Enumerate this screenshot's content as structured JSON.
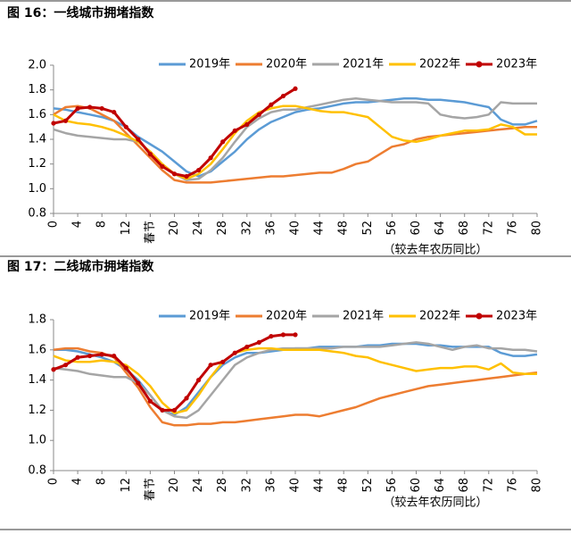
{
  "chart_data": [
    {
      "type": "line",
      "title": "图 16：一线城市拥堵指数",
      "annotation": "（较去年农历同比）",
      "x": [
        0,
        2,
        4,
        6,
        8,
        10,
        12,
        14,
        16,
        18,
        20,
        22,
        24,
        26,
        28,
        30,
        32,
        34,
        36,
        38,
        40,
        42,
        44,
        46,
        48,
        50,
        52,
        54,
        56,
        58,
        60,
        62,
        64,
        66,
        68,
        70,
        72,
        74,
        76,
        78,
        80
      ],
      "xlim": [
        0,
        80
      ],
      "xticks": [
        0,
        4,
        8,
        12,
        {
          "value": 16,
          "label": "春节"
        },
        20,
        24,
        28,
        32,
        36,
        40,
        44,
        48,
        52,
        56,
        60,
        64,
        68,
        72,
        76,
        80
      ],
      "ylim": [
        0.8,
        2.0
      ],
      "yticks": [
        0.8,
        {
          "value": 1,
          "label": "1.0"
        },
        1.2,
        1.4,
        1.6,
        1.8,
        {
          "value": 2,
          "label": "2.0"
        }
      ],
      "series": [
        {
          "name": "2019年",
          "color": "#5b9bd5",
          "values": [
            1.65,
            1.64,
            1.62,
            1.6,
            1.58,
            1.55,
            1.5,
            1.42,
            1.36,
            1.3,
            1.22,
            1.14,
            1.1,
            1.14,
            1.22,
            1.3,
            1.4,
            1.48,
            1.54,
            1.58,
            1.62,
            1.64,
            1.65,
            1.67,
            1.69,
            1.7,
            1.7,
            1.71,
            1.72,
            1.73,
            1.73,
            1.72,
            1.72,
            1.71,
            1.7,
            1.68,
            1.66,
            1.56,
            1.52,
            1.52,
            1.55
          ]
        },
        {
          "name": "2020年",
          "color": "#ed7d31",
          "values": [
            1.6,
            1.66,
            1.67,
            1.65,
            1.6,
            1.55,
            1.45,
            1.35,
            1.25,
            1.15,
            1.07,
            1.05,
            1.05,
            1.05,
            1.06,
            1.07,
            1.08,
            1.09,
            1.1,
            1.1,
            1.11,
            1.12,
            1.13,
            1.13,
            1.16,
            1.2,
            1.22,
            1.28,
            1.34,
            1.36,
            1.4,
            1.42,
            1.43,
            1.44,
            1.45,
            1.46,
            1.47,
            1.48,
            1.49,
            1.5,
            1.5
          ]
        },
        {
          "name": "2021年",
          "color": "#a5a5a5",
          "values": [
            1.48,
            1.45,
            1.43,
            1.42,
            1.41,
            1.4,
            1.4,
            1.38,
            1.3,
            1.2,
            1.12,
            1.07,
            1.08,
            1.15,
            1.25,
            1.38,
            1.5,
            1.57,
            1.62,
            1.64,
            1.64,
            1.66,
            1.68,
            1.7,
            1.72,
            1.73,
            1.72,
            1.71,
            1.7,
            1.7,
            1.7,
            1.69,
            1.6,
            1.58,
            1.57,
            1.58,
            1.6,
            1.7,
            1.69,
            1.69,
            1.69
          ]
        },
        {
          "name": "2022年",
          "color": "#ffc000",
          "values": [
            1.6,
            1.55,
            1.53,
            1.52,
            1.5,
            1.47,
            1.43,
            1.38,
            1.3,
            1.2,
            1.12,
            1.08,
            1.12,
            1.2,
            1.32,
            1.45,
            1.55,
            1.62,
            1.65,
            1.67,
            1.67,
            1.65,
            1.63,
            1.62,
            1.62,
            1.6,
            1.58,
            1.5,
            1.42,
            1.39,
            1.38,
            1.4,
            1.43,
            1.45,
            1.47,
            1.47,
            1.48,
            1.52,
            1.5,
            1.44,
            1.44
          ]
        },
        {
          "name": "2023年",
          "color": "#c00000",
          "markers": true,
          "values": [
            1.53,
            1.55,
            1.65,
            1.66,
            1.65,
            1.62,
            1.5,
            1.4,
            1.28,
            1.18,
            1.12,
            1.1,
            1.15,
            1.25,
            1.38,
            1.47,
            1.52,
            1.6,
            1.68,
            1.75,
            1.81,
            null,
            null,
            null,
            null,
            null,
            null,
            null,
            null,
            null,
            null,
            null,
            null,
            null,
            null,
            null,
            null,
            null,
            null,
            null,
            null
          ]
        }
      ]
    },
    {
      "type": "line",
      "title": "图 17：二线城市拥堵指数",
      "annotation": "（较去年农历同比）",
      "x": [
        0,
        2,
        4,
        6,
        8,
        10,
        12,
        14,
        16,
        18,
        20,
        22,
        24,
        26,
        28,
        30,
        32,
        34,
        36,
        38,
        40,
        42,
        44,
        46,
        48,
        50,
        52,
        54,
        56,
        58,
        60,
        62,
        64,
        66,
        68,
        70,
        72,
        74,
        76,
        78,
        80
      ],
      "xlim": [
        0,
        80
      ],
      "xticks": [
        0,
        4,
        8,
        12,
        {
          "value": 16,
          "label": "春节"
        },
        20,
        24,
        28,
        32,
        36,
        40,
        44,
        48,
        52,
        56,
        60,
        64,
        68,
        72,
        76,
        80
      ],
      "ylim": [
        0.8,
        1.8
      ],
      "yticks": [
        0.8,
        {
          "value": 1,
          "label": "1.0"
        },
        1.2,
        1.4,
        1.6,
        1.8
      ],
      "series": [
        {
          "name": "2019年",
          "color": "#5b9bd5",
          "values": [
            1.6,
            1.6,
            1.59,
            1.57,
            1.55,
            1.52,
            1.47,
            1.4,
            1.3,
            1.2,
            1.17,
            1.22,
            1.32,
            1.42,
            1.5,
            1.55,
            1.58,
            1.58,
            1.59,
            1.6,
            1.61,
            1.61,
            1.62,
            1.62,
            1.62,
            1.62,
            1.63,
            1.63,
            1.64,
            1.64,
            1.64,
            1.63,
            1.63,
            1.62,
            1.62,
            1.62,
            1.62,
            1.58,
            1.56,
            1.56,
            1.57
          ]
        },
        {
          "name": "2020年",
          "color": "#ed7d31",
          "values": [
            1.6,
            1.61,
            1.61,
            1.59,
            1.58,
            1.55,
            1.45,
            1.35,
            1.22,
            1.12,
            1.1,
            1.1,
            1.11,
            1.11,
            1.12,
            1.12,
            1.13,
            1.14,
            1.15,
            1.16,
            1.17,
            1.17,
            1.16,
            1.18,
            1.2,
            1.22,
            1.25,
            1.28,
            1.3,
            1.32,
            1.34,
            1.36,
            1.37,
            1.38,
            1.39,
            1.4,
            1.41,
            1.42,
            1.43,
            1.44,
            1.45
          ]
        },
        {
          "name": "2021年",
          "color": "#a5a5a5",
          "values": [
            1.48,
            1.47,
            1.46,
            1.44,
            1.43,
            1.42,
            1.42,
            1.38,
            1.3,
            1.2,
            1.16,
            1.15,
            1.2,
            1.3,
            1.4,
            1.5,
            1.55,
            1.58,
            1.6,
            1.61,
            1.61,
            1.61,
            1.61,
            1.61,
            1.62,
            1.62,
            1.62,
            1.62,
            1.63,
            1.64,
            1.65,
            1.64,
            1.62,
            1.6,
            1.62,
            1.63,
            1.61,
            1.61,
            1.6,
            1.6,
            1.59
          ]
        },
        {
          "name": "2022年",
          "color": "#ffc000",
          "values": [
            1.56,
            1.53,
            1.52,
            1.52,
            1.53,
            1.52,
            1.5,
            1.44,
            1.36,
            1.25,
            1.18,
            1.2,
            1.3,
            1.42,
            1.52,
            1.58,
            1.6,
            1.61,
            1.61,
            1.6,
            1.6,
            1.6,
            1.6,
            1.59,
            1.58,
            1.56,
            1.55,
            1.52,
            1.5,
            1.48,
            1.46,
            1.47,
            1.48,
            1.48,
            1.49,
            1.49,
            1.47,
            1.51,
            1.45,
            1.44,
            1.44
          ]
        },
        {
          "name": "2023年",
          "color": "#c00000",
          "markers": true,
          "values": [
            1.47,
            1.5,
            1.55,
            1.56,
            1.57,
            1.56,
            1.48,
            1.38,
            1.26,
            1.2,
            1.2,
            1.28,
            1.4,
            1.5,
            1.52,
            1.58,
            1.62,
            1.65,
            1.69,
            1.7,
            1.7,
            null,
            null,
            null,
            null,
            null,
            null,
            null,
            null,
            null,
            null,
            null,
            null,
            null,
            null,
            null,
            null,
            null,
            null,
            null,
            null
          ]
        }
      ]
    }
  ]
}
